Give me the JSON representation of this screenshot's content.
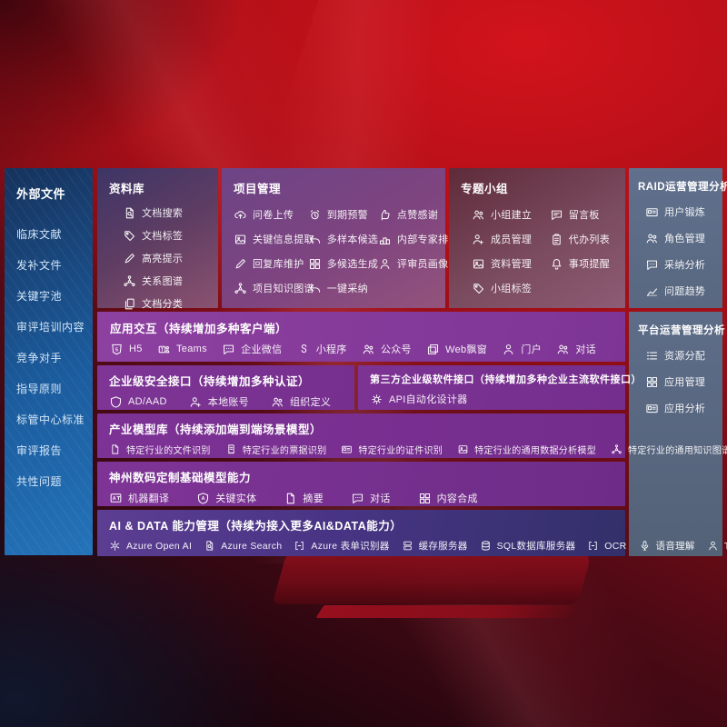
{
  "palette": {
    "background_red": "#ae0f17",
    "sidebar_blue": "#1b5c9e",
    "purple_row": "#7d3595",
    "slate_panel": "#5d6c88",
    "maroon_box": "#5e2b3a",
    "dark_blue_row": "#32306a"
  },
  "left_sidebar": {
    "title": "外部文件",
    "items": [
      "临床文献",
      "发补文件",
      "关键字池",
      "审评培训内容",
      "竞争对手",
      "指导原则",
      "标管中心标准",
      "审评报告",
      "共性问题"
    ]
  },
  "library": {
    "title": "资料库",
    "items": [
      {
        "icon": "doc-search-icon",
        "label": "文档搜索"
      },
      {
        "icon": "tag-icon",
        "label": "文档标签"
      },
      {
        "icon": "highlight-pen-icon",
        "label": "高亮提示"
      },
      {
        "icon": "relation-graph-icon",
        "label": "关系图谱"
      },
      {
        "icon": "doc-category-icon",
        "label": "文档分类"
      }
    ]
  },
  "project": {
    "title": "项目管理",
    "items": [
      {
        "icon": "cloud-upload-icon",
        "label": "问卷上传"
      },
      {
        "icon": "alarm-icon",
        "label": "到期预警"
      },
      {
        "icon": "thumbs-up-icon",
        "label": "点赞感谢"
      },
      {
        "icon": "key-info-extract-icon",
        "label": "关键信息提取"
      },
      {
        "icon": "multi-sample-icon",
        "label": "多样本候选"
      },
      {
        "icon": "expert-ranking-icon",
        "label": "内部专家排名"
      },
      {
        "icon": "reply-maintain-icon",
        "label": "回复库维护"
      },
      {
        "icon": "multi-candidate-icon",
        "label": "多候选生成"
      },
      {
        "icon": "reviewer-portrait-icon",
        "label": "评审员画像"
      },
      {
        "icon": "project-knowledge-graph-icon",
        "label": "项目知识图谱"
      },
      {
        "icon": "one-click-adopt-icon",
        "label": "一键采纳"
      }
    ]
  },
  "group": {
    "title": "专题小组",
    "items": [
      {
        "icon": "team-build-icon",
        "label": "小组建立"
      },
      {
        "icon": "message-board-icon",
        "label": "留言板"
      },
      {
        "icon": "member-manage-icon",
        "label": "成员管理"
      },
      {
        "icon": "todo-list-icon",
        "label": "代办列表"
      },
      {
        "icon": "material-manage-icon",
        "label": "资料管理"
      },
      {
        "icon": "reminder-icon",
        "label": "事项提醒"
      },
      {
        "icon": "group-tag-icon",
        "label": "小组标签"
      }
    ]
  },
  "raid": {
    "title": "RAID运营管理分析",
    "items": [
      {
        "icon": "user-card-icon",
        "label": "用户锻炼"
      },
      {
        "icon": "role-manage-icon",
        "label": "角色管理"
      },
      {
        "icon": "adoption-analysis-icon",
        "label": "采纳分析"
      },
      {
        "icon": "issue-trend-icon",
        "label": "问题趋势"
      }
    ]
  },
  "platform": {
    "title": "平台运营管理分析",
    "items": [
      {
        "icon": "resource-allocation-icon",
        "label": "资源分配"
      },
      {
        "icon": "app-manage-icon",
        "label": "应用管理"
      },
      {
        "icon": "app-analysis-icon",
        "label": "应用分析"
      }
    ]
  },
  "interaction": {
    "title": "应用交互（持续增加多种客户端）",
    "items": [
      {
        "icon": "h5-icon",
        "label": "H5"
      },
      {
        "icon": "teams-icon",
        "label": "Teams"
      },
      {
        "icon": "wechat-work-icon",
        "label": "企业微信"
      },
      {
        "icon": "miniprogram-icon",
        "label": "小程序"
      },
      {
        "icon": "official-account-icon",
        "label": "公众号"
      },
      {
        "icon": "web-popup-icon",
        "label": "Web飘窗"
      },
      {
        "icon": "portal-icon",
        "label": "门户"
      },
      {
        "icon": "dialog-icon",
        "label": "对话"
      }
    ]
  },
  "security": {
    "title": "企业级安全接口（持续增加多种认证）",
    "items": [
      {
        "icon": "ad-aad-icon",
        "label": "AD/AAD"
      },
      {
        "icon": "local-account-icon",
        "label": "本地账号"
      },
      {
        "icon": "org-definition-icon",
        "label": "组织定义"
      }
    ]
  },
  "thirdparty": {
    "title": "第三方企业级软件接口（持续增加多种企业主流软件接口）",
    "items": [
      {
        "icon": "api-gear-icon",
        "label": "API自动化设计器"
      }
    ]
  },
  "industry": {
    "title": "产业模型库（持续添加端到端场景模型）",
    "items": [
      {
        "icon": "file-recognition-icon",
        "label": "特定行业的文件识别"
      },
      {
        "icon": "receipt-recognition-icon",
        "label": "特定行业的票据识别"
      },
      {
        "icon": "id-recognition-icon",
        "label": "特定行业的证件识别"
      },
      {
        "icon": "data-analysis-model-icon",
        "label": "特定行业的通用数据分析模型"
      },
      {
        "icon": "knowledge-graph-model-icon",
        "label": "特定行业的通用知识图谱模型"
      }
    ]
  },
  "basemodel": {
    "title": "神州数码定制基础模型能力",
    "items": [
      {
        "icon": "machine-translation-icon",
        "label": "机器翻译"
      },
      {
        "icon": "key-entity-icon",
        "label": "关键实体"
      },
      {
        "icon": "summary-icon",
        "label": "摘要"
      },
      {
        "icon": "dialogue-icon",
        "label": "对话"
      },
      {
        "icon": "content-compose-icon",
        "label": "内容合成"
      }
    ]
  },
  "aidata": {
    "title": "AI & DATA 能力管理（持续为接入更多AI&DATA能力）",
    "items": [
      {
        "icon": "azure-openai-icon",
        "label": "Azure Open AI"
      },
      {
        "icon": "azure-search-icon",
        "label": "Azure Search"
      },
      {
        "icon": "form-recognizer-icon",
        "label": "Azure 表单识别器"
      },
      {
        "icon": "cache-server-icon",
        "label": "缓存服务器"
      },
      {
        "icon": "sql-db-icon",
        "label": "SQL数据库服务器"
      },
      {
        "icon": "ocr-icon",
        "label": "OCR"
      },
      {
        "icon": "speech-understanding-icon",
        "label": "语音理解"
      },
      {
        "icon": "tts-icon",
        "label": "TTS"
      }
    ]
  }
}
